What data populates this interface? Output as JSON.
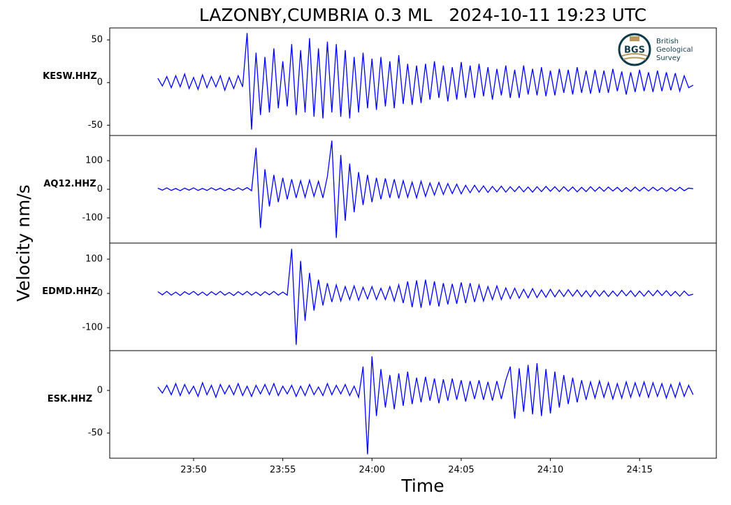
{
  "title": "LAZONBY,CUMBRIA 0.3 ML   2024-10-11 19:23 UTC",
  "ylabel": "Velocity nm/s",
  "xlabel": "Time",
  "logo": {
    "initials": "BGS",
    "lines": [
      "British",
      "Geological",
      "Survey"
    ]
  },
  "chart_data": [
    {
      "type": "line",
      "x": [
        1428,
        1428.25,
        1428.5,
        1428.75,
        1429,
        1429.25,
        1429.5,
        1429.75,
        1430,
        1430.25,
        1430.5,
        1430.75,
        1431,
        1431.25,
        1431.5,
        1431.75,
        1432,
        1432.25,
        1432.5,
        1432.75,
        1433,
        1433.25,
        1433.5,
        1433.75,
        1434,
        1434.25,
        1434.5,
        1434.75,
        1435,
        1435.25,
        1435.5,
        1435.75,
        1436,
        1436.25,
        1436.5,
        1436.75,
        1437,
        1437.25,
        1437.5,
        1437.75,
        1438,
        1438.25,
        1438.5,
        1438.75,
        1439,
        1439.25,
        1439.5,
        1439.75,
        1440,
        1440.25,
        1440.5,
        1440.75,
        1441,
        1441.25,
        1441.5,
        1441.75,
        1442,
        1442.25,
        1442.5,
        1442.75,
        1443,
        1443.25,
        1443.5,
        1443.75,
        1444,
        1444.25,
        1444.5,
        1444.75,
        1445,
        1445.25,
        1445.5,
        1445.75,
        1446,
        1446.25,
        1446.5,
        1446.75,
        1447,
        1447.25,
        1447.5,
        1447.75,
        1448,
        1448.25,
        1448.5,
        1448.75,
        1449,
        1449.25,
        1449.5,
        1449.75,
        1450,
        1450.25,
        1450.5,
        1450.75,
        1451,
        1451.25,
        1451.5,
        1451.75,
        1452,
        1452.25,
        1452.5,
        1452.75,
        1453,
        1453.25,
        1453.5,
        1453.75,
        1454,
        1454.25,
        1454.5,
        1454.75,
        1455,
        1455.25,
        1455.5,
        1455.75,
        1456,
        1456.25,
        1456.5,
        1456.75,
        1457,
        1457.25,
        1457.5,
        1457.75,
        1458
      ],
      "series": [
        {
          "name": "KESW.HHZ",
          "color": "#0000ff",
          "values": [
            5,
            -4,
            7,
            -6,
            8,
            -5,
            10,
            -7,
            6,
            -8,
            9,
            -6,
            7,
            -5,
            8,
            -9,
            6,
            -7,
            8,
            -5,
            58,
            -55,
            35,
            -38,
            30,
            -35,
            40,
            -30,
            25,
            -28,
            45,
            -38,
            38,
            -35,
            52,
            -40,
            40,
            -42,
            48,
            -35,
            45,
            -40,
            38,
            -42,
            30,
            -35,
            35,
            -30,
            28,
            -32,
            30,
            -28,
            25,
            -30,
            32,
            -25,
            22,
            -26,
            20,
            -24,
            22,
            -20,
            25,
            -18,
            20,
            -22,
            18,
            -20,
            24,
            -18,
            20,
            -18,
            22,
            -16,
            18,
            -20,
            16,
            -15,
            20,
            -18,
            15,
            -18,
            20,
            -14,
            16,
            -15,
            18,
            -16,
            14,
            -15,
            16,
            -12,
            15,
            -14,
            18,
            -12,
            14,
            -13,
            15,
            -12,
            14,
            -12,
            16,
            -10,
            13,
            -14,
            12,
            -11,
            15,
            -10,
            12,
            -11,
            14,
            -10,
            12,
            -9,
            11,
            -10,
            8,
            -6,
            -3
          ]
        }
      ],
      "xlim": [
        1425.3,
        1459.3
      ],
      "ylim": [
        -62,
        64
      ],
      "yticks": [
        50,
        0,
        -50
      ]
    },
    {
      "type": "line",
      "x": [
        1428,
        1428.25,
        1428.5,
        1428.75,
        1429,
        1429.25,
        1429.5,
        1429.75,
        1430,
        1430.25,
        1430.5,
        1430.75,
        1431,
        1431.25,
        1431.5,
        1431.75,
        1432,
        1432.25,
        1432.5,
        1432.75,
        1433,
        1433.25,
        1433.5,
        1433.75,
        1434,
        1434.25,
        1434.5,
        1434.75,
        1435,
        1435.25,
        1435.5,
        1435.75,
        1436,
        1436.25,
        1436.5,
        1436.75,
        1437,
        1437.25,
        1437.5,
        1437.75,
        1438,
        1438.25,
        1438.5,
        1438.75,
        1439,
        1439.25,
        1439.5,
        1439.75,
        1440,
        1440.25,
        1440.5,
        1440.75,
        1441,
        1441.25,
        1441.5,
        1441.75,
        1442,
        1442.25,
        1442.5,
        1442.75,
        1443,
        1443.25,
        1443.5,
        1443.75,
        1444,
        1444.25,
        1444.5,
        1444.75,
        1445,
        1445.25,
        1445.5,
        1445.75,
        1446,
        1446.25,
        1446.5,
        1446.75,
        1447,
        1447.25,
        1447.5,
        1447.75,
        1448,
        1448.25,
        1448.5,
        1448.75,
        1449,
        1449.25,
        1449.5,
        1449.75,
        1450,
        1450.25,
        1450.5,
        1450.75,
        1451,
        1451.25,
        1451.5,
        1451.75,
        1452,
        1452.25,
        1452.5,
        1452.75,
        1453,
        1453.25,
        1453.5,
        1453.75,
        1454,
        1454.25,
        1454.5,
        1454.75,
        1455,
        1455.25,
        1455.5,
        1455.75,
        1456,
        1456.25,
        1456.5,
        1456.75,
        1457,
        1457.25,
        1457.5,
        1457.75,
        1458
      ],
      "series": [
        {
          "name": "AQ12.HHZ",
          "color": "#0000ff",
          "values": [
            4,
            -3,
            5,
            -4,
            3,
            -5,
            4,
            -3,
            5,
            -4,
            3,
            -4,
            5,
            -3,
            4,
            -5,
            3,
            -4,
            5,
            -3,
            6,
            -5,
            145,
            -135,
            70,
            -60,
            50,
            -45,
            40,
            -35,
            35,
            -30,
            30,
            -28,
            32,
            -25,
            28,
            -30,
            45,
            170,
            -170,
            120,
            -110,
            90,
            -80,
            60,
            -55,
            50,
            -45,
            40,
            -35,
            38,
            -30,
            35,
            -32,
            30,
            -28,
            25,
            -30,
            28,
            -25,
            22,
            -20,
            24,
            -18,
            20,
            -15,
            18,
            -16,
            14,
            -12,
            14,
            -10,
            12,
            -11,
            10,
            -9,
            11,
            -10,
            9,
            -8,
            10,
            -9,
            8,
            -10,
            9,
            -8,
            10,
            -7,
            9,
            -8,
            9,
            -7,
            8,
            -9,
            7,
            -8,
            9,
            -7,
            8,
            -7,
            8,
            -6,
            7,
            -8,
            6,
            -7,
            8,
            -6,
            7,
            -6,
            7,
            -5,
            6,
            -7,
            5,
            -6,
            7,
            -5,
            4,
            2
          ]
        }
      ],
      "xlim": [
        1425.3,
        1459.3
      ],
      "ylim": [
        -188,
        188
      ],
      "yticks": [
        100,
        0,
        -100
      ]
    },
    {
      "type": "line",
      "x": [
        1428,
        1428.25,
        1428.5,
        1428.75,
        1429,
        1429.25,
        1429.5,
        1429.75,
        1430,
        1430.25,
        1430.5,
        1430.75,
        1431,
        1431.25,
        1431.5,
        1431.75,
        1432,
        1432.25,
        1432.5,
        1432.75,
        1433,
        1433.25,
        1433.5,
        1433.75,
        1434,
        1434.25,
        1434.5,
        1434.75,
        1435,
        1435.25,
        1435.5,
        1435.75,
        1436,
        1436.25,
        1436.5,
        1436.75,
        1437,
        1437.25,
        1437.5,
        1437.75,
        1438,
        1438.25,
        1438.5,
        1438.75,
        1439,
        1439.25,
        1439.5,
        1439.75,
        1440,
        1440.25,
        1440.5,
        1440.75,
        1441,
        1441.25,
        1441.5,
        1441.75,
        1442,
        1442.25,
        1442.5,
        1442.75,
        1443,
        1443.25,
        1443.5,
        1443.75,
        1444,
        1444.25,
        1444.5,
        1444.75,
        1445,
        1445.25,
        1445.5,
        1445.75,
        1446,
        1446.25,
        1446.5,
        1446.75,
        1447,
        1447.25,
        1447.5,
        1447.75,
        1448,
        1448.25,
        1448.5,
        1448.75,
        1449,
        1449.25,
        1449.5,
        1449.75,
        1450,
        1450.25,
        1450.5,
        1450.75,
        1451,
        1451.25,
        1451.5,
        1451.75,
        1452,
        1452.25,
        1452.5,
        1452.75,
        1453,
        1453.25,
        1453.5,
        1453.75,
        1454,
        1454.25,
        1454.5,
        1454.75,
        1455,
        1455.25,
        1455.5,
        1455.75,
        1456,
        1456.25,
        1456.5,
        1456.75,
        1457,
        1457.25,
        1457.5,
        1457.75,
        1458
      ],
      "series": [
        {
          "name": "EDMD.HHZ",
          "color": "#0000ff",
          "values": [
            5,
            -4,
            6,
            -5,
            4,
            -6,
            5,
            -3,
            6,
            -5,
            4,
            -6,
            5,
            -4,
            6,
            -5,
            3,
            -6,
            5,
            -4,
            6,
            -5,
            4,
            -6,
            5,
            -4,
            6,
            -5,
            4,
            -5,
            130,
            -150,
            95,
            -80,
            60,
            -50,
            40,
            -35,
            30,
            -25,
            25,
            -22,
            20,
            -18,
            22,
            -20,
            18,
            -16,
            20,
            -18,
            15,
            -18,
            20,
            -22,
            25,
            -28,
            35,
            -40,
            38,
            -42,
            40,
            -35,
            35,
            -38,
            30,
            -32,
            28,
            -30,
            32,
            -28,
            30,
            -25,
            25,
            -22,
            20,
            -18,
            22,
            -18,
            16,
            -15,
            15,
            -14,
            12,
            -13,
            14,
            -12,
            10,
            -11,
            12,
            -10,
            10,
            -9,
            11,
            -8,
            10,
            -9,
            8,
            -10,
            9,
            -8,
            8,
            -9,
            7,
            -8,
            9,
            -7,
            8,
            -9,
            7,
            -8,
            8,
            -7,
            9,
            -6,
            8,
            -7,
            6,
            -8,
            7,
            -6,
            -2
          ]
        }
      ],
      "xlim": [
        1425.3,
        1459.3
      ],
      "ylim": [
        -167,
        147
      ],
      "yticks": [
        100,
        0,
        -100
      ]
    },
    {
      "type": "line",
      "x": [
        1428,
        1428.25,
        1428.5,
        1428.75,
        1429,
        1429.25,
        1429.5,
        1429.75,
        1430,
        1430.25,
        1430.5,
        1430.75,
        1431,
        1431.25,
        1431.5,
        1431.75,
        1432,
        1432.25,
        1432.5,
        1432.75,
        1433,
        1433.25,
        1433.5,
        1433.75,
        1434,
        1434.25,
        1434.5,
        1434.75,
        1435,
        1435.25,
        1435.5,
        1435.75,
        1436,
        1436.25,
        1436.5,
        1436.75,
        1437,
        1437.25,
        1437.5,
        1437.75,
        1438,
        1438.25,
        1438.5,
        1438.75,
        1439,
        1439.25,
        1439.5,
        1439.75,
        1440,
        1440.25,
        1440.5,
        1440.75,
        1441,
        1441.25,
        1441.5,
        1441.75,
        1442,
        1442.25,
        1442.5,
        1442.75,
        1443,
        1443.25,
        1443.5,
        1443.75,
        1444,
        1444.25,
        1444.5,
        1444.75,
        1445,
        1445.25,
        1445.5,
        1445.75,
        1446,
        1446.25,
        1446.5,
        1446.75,
        1447,
        1447.25,
        1447.5,
        1447.75,
        1448,
        1448.25,
        1448.5,
        1448.75,
        1449,
        1449.25,
        1449.5,
        1449.75,
        1450,
        1450.25,
        1450.5,
        1450.75,
        1451,
        1451.25,
        1451.5,
        1451.75,
        1452,
        1452.25,
        1452.5,
        1452.75,
        1453,
        1453.25,
        1453.5,
        1453.75,
        1454,
        1454.25,
        1454.5,
        1454.75,
        1455,
        1455.25,
        1455.5,
        1455.75,
        1456,
        1456.25,
        1456.5,
        1456.75,
        1457,
        1457.25,
        1457.5,
        1457.75,
        1458
      ],
      "series": [
        {
          "name": "ESK.HHZ",
          "color": "#0000ff",
          "values": [
            4,
            -3,
            6,
            -5,
            8,
            -6,
            7,
            -4,
            5,
            -7,
            9,
            -5,
            6,
            -8,
            7,
            -4,
            6,
            -5,
            8,
            -6,
            5,
            -7,
            6,
            -4,
            7,
            -5,
            8,
            -6,
            5,
            -4,
            6,
            -7,
            5,
            -6,
            7,
            -5,
            4,
            -6,
            8,
            -5,
            6,
            -4,
            7,
            -6,
            5,
            -8,
            28,
            -75,
            40,
            -30,
            25,
            -20,
            18,
            -22,
            20,
            -18,
            22,
            -16,
            15,
            -14,
            16,
            -12,
            14,
            -15,
            13,
            -12,
            14,
            -11,
            12,
            -13,
            11,
            -10,
            12,
            -11,
            10,
            -12,
            11,
            -10,
            12,
            28,
            -33,
            26,
            -25,
            30,
            -28,
            32,
            -30,
            25,
            -27,
            22,
            -20,
            18,
            -16,
            15,
            -14,
            12,
            -11,
            10,
            -9,
            11,
            -8,
            9,
            -10,
            8,
            -9,
            10,
            -8,
            9,
            -7,
            10,
            -8,
            9,
            -7,
            8,
            -9,
            7,
            -8,
            9,
            -7,
            6,
            -5
          ]
        }
      ],
      "xlim": [
        1425.3,
        1459.3
      ],
      "ylim": [
        -79.5,
        46.7
      ],
      "yticks": [
        0,
        -50
      ],
      "xticks": [
        {
          "value": 1430,
          "label": "23:50"
        },
        {
          "value": 1435,
          "label": "23:55"
        },
        {
          "value": 1440,
          "label": "24:00"
        },
        {
          "value": 1445,
          "label": "24:05"
        },
        {
          "value": 1450,
          "label": "24:10"
        },
        {
          "value": 1455,
          "label": "24:15"
        }
      ]
    }
  ]
}
